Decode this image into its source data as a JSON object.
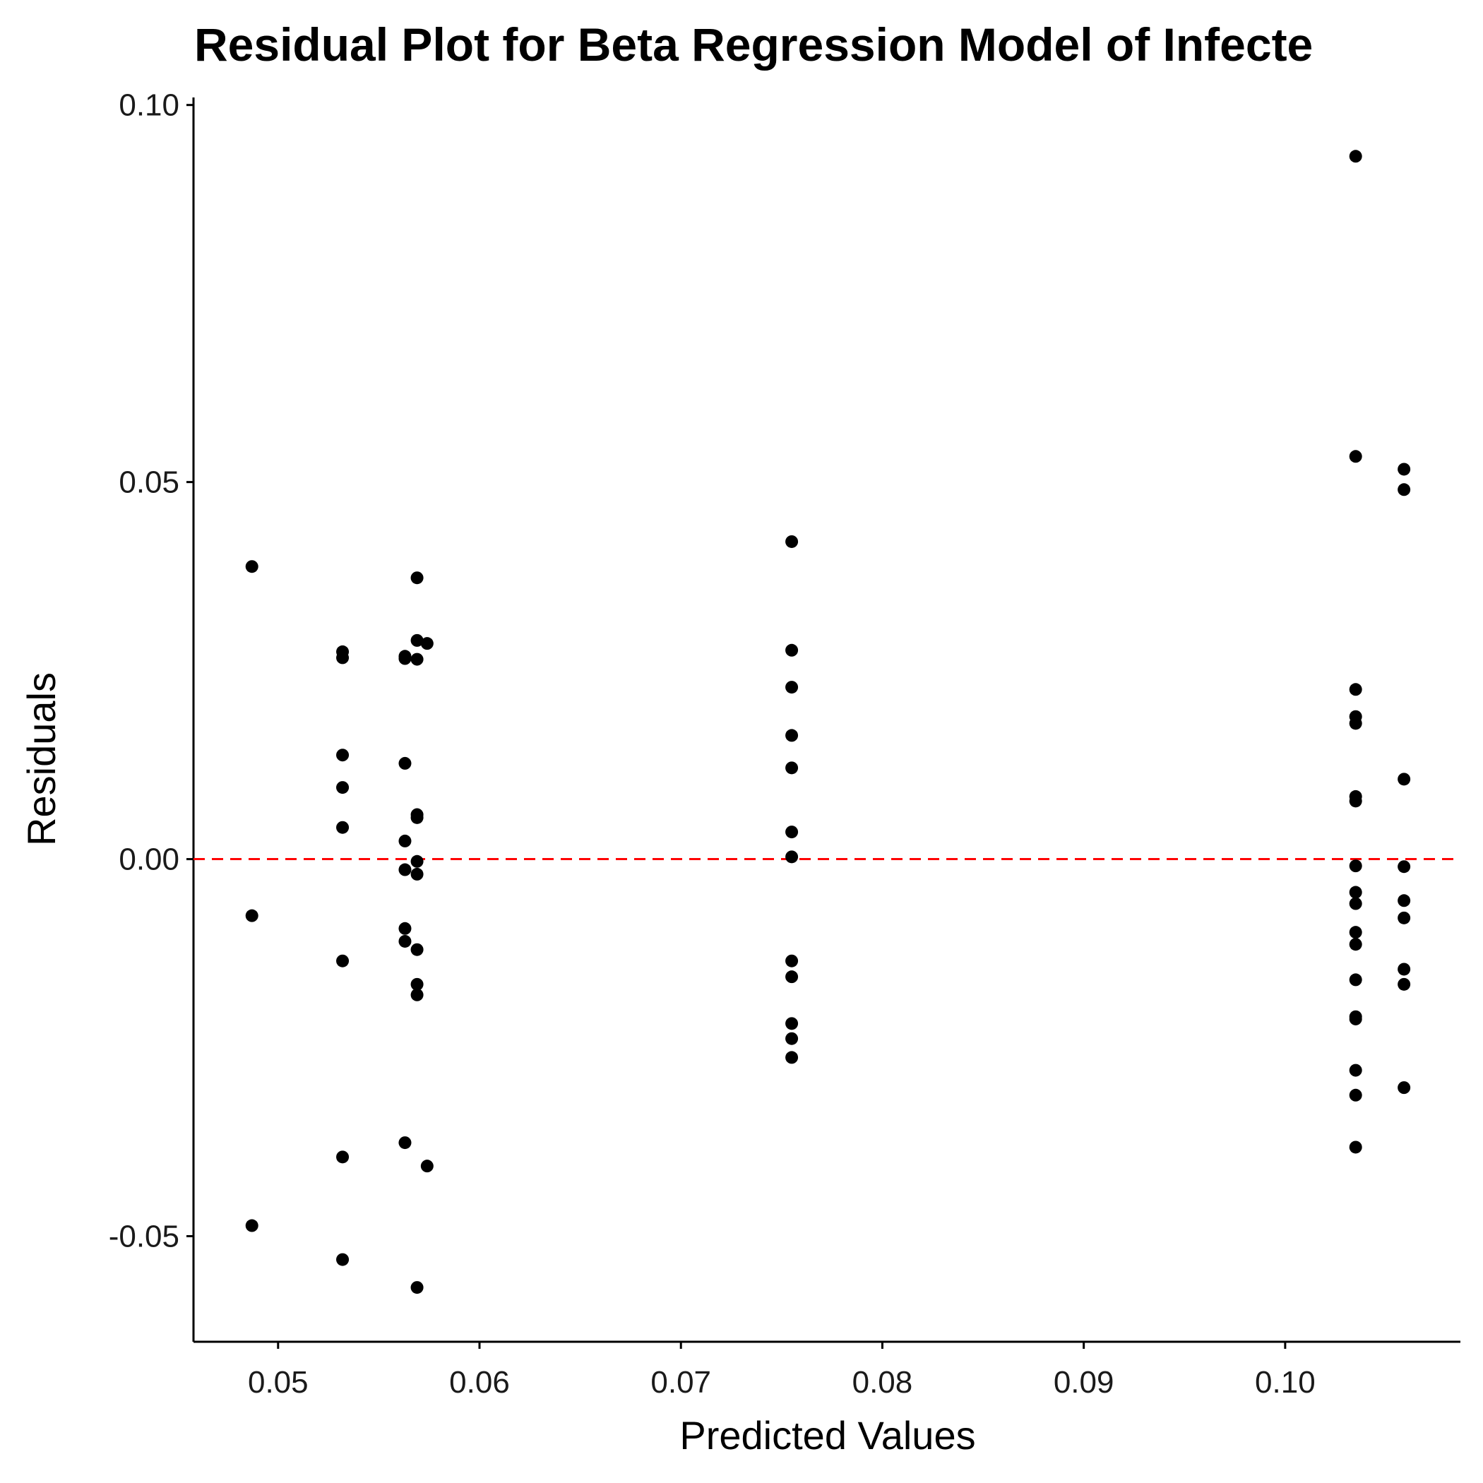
{
  "chart_data": {
    "type": "scatter",
    "title": "Residual Plot for Beta Regression Model of Infecte",
    "xlabel": "Predicted Values",
    "ylabel": "Residuals",
    "xlim": [
      0.0458,
      0.1087
    ],
    "ylim": [
      -0.064,
      0.101
    ],
    "xticks": [
      {
        "value": 0.05,
        "label": "0.05"
      },
      {
        "value": 0.06,
        "label": "0.06"
      },
      {
        "value": 0.07,
        "label": "0.07"
      },
      {
        "value": 0.08,
        "label": "0.08"
      },
      {
        "value": 0.09,
        "label": "0.09"
      },
      {
        "value": 0.1,
        "label": "0.10"
      }
    ],
    "yticks": [
      {
        "value": -0.05,
        "label": "-0.05"
      },
      {
        "value": 0.0,
        "label": "0.00"
      },
      {
        "value": 0.05,
        "label": "0.05"
      },
      {
        "value": 0.1,
        "label": "0.10"
      }
    ],
    "reference_line": {
      "y": 0,
      "color": "#ff0000",
      "style": "dashed"
    },
    "point_color": "#000000",
    "grid": false,
    "points": [
      {
        "x": 0.0487,
        "y": 0.0388
      },
      {
        "x": 0.0487,
        "y": -0.0075
      },
      {
        "x": 0.0487,
        "y": -0.0486
      },
      {
        "x": 0.0532,
        "y": 0.0275
      },
      {
        "x": 0.0532,
        "y": 0.0267
      },
      {
        "x": 0.0532,
        "y": 0.0138
      },
      {
        "x": 0.0532,
        "y": 0.0095
      },
      {
        "x": 0.0532,
        "y": 0.0042
      },
      {
        "x": 0.0532,
        "y": -0.0135
      },
      {
        "x": 0.0532,
        "y": -0.0395
      },
      {
        "x": 0.0532,
        "y": -0.0531
      },
      {
        "x": 0.0563,
        "y": 0.0269
      },
      {
        "x": 0.0563,
        "y": 0.0266
      },
      {
        "x": 0.0563,
        "y": 0.0127
      },
      {
        "x": 0.0563,
        "y": 0.0024
      },
      {
        "x": 0.0563,
        "y": -0.0014
      },
      {
        "x": 0.0563,
        "y": -0.0092
      },
      {
        "x": 0.0563,
        "y": -0.0109
      },
      {
        "x": 0.0563,
        "y": -0.0376
      },
      {
        "x": 0.0569,
        "y": 0.0373
      },
      {
        "x": 0.0569,
        "y": 0.029
      },
      {
        "x": 0.0569,
        "y": 0.0265
      },
      {
        "x": 0.0569,
        "y": 0.0059
      },
      {
        "x": 0.0569,
        "y": 0.0055
      },
      {
        "x": 0.0569,
        "y": -0.0003
      },
      {
        "x": 0.0569,
        "y": -0.002
      },
      {
        "x": 0.0569,
        "y": -0.012
      },
      {
        "x": 0.0569,
        "y": -0.0166
      },
      {
        "x": 0.0569,
        "y": -0.018
      },
      {
        "x": 0.0569,
        "y": -0.0568
      },
      {
        "x": 0.0574,
        "y": 0.0286
      },
      {
        "x": 0.0574,
        "y": -0.0407
      },
      {
        "x": 0.0755,
        "y": 0.0421
      },
      {
        "x": 0.0755,
        "y": 0.0277
      },
      {
        "x": 0.0755,
        "y": 0.0228
      },
      {
        "x": 0.0755,
        "y": 0.0164
      },
      {
        "x": 0.0755,
        "y": 0.0121
      },
      {
        "x": 0.0755,
        "y": 0.0036
      },
      {
        "x": 0.0755,
        "y": 0.0003
      },
      {
        "x": 0.0755,
        "y": -0.0135
      },
      {
        "x": 0.0755,
        "y": -0.0156
      },
      {
        "x": 0.0755,
        "y": -0.0218
      },
      {
        "x": 0.0755,
        "y": -0.0238
      },
      {
        "x": 0.0755,
        "y": -0.0263
      },
      {
        "x": 0.1035,
        "y": 0.0932
      },
      {
        "x": 0.1035,
        "y": 0.0534
      },
      {
        "x": 0.1035,
        "y": 0.0225
      },
      {
        "x": 0.1035,
        "y": 0.0189
      },
      {
        "x": 0.1035,
        "y": 0.018
      },
      {
        "x": 0.1035,
        "y": 0.0083
      },
      {
        "x": 0.1035,
        "y": 0.0077
      },
      {
        "x": 0.1035,
        "y": -0.0009
      },
      {
        "x": 0.1035,
        "y": -0.0044
      },
      {
        "x": 0.1035,
        "y": -0.0059
      },
      {
        "x": 0.1035,
        "y": -0.0097
      },
      {
        "x": 0.1035,
        "y": -0.0113
      },
      {
        "x": 0.1035,
        "y": -0.016
      },
      {
        "x": 0.1035,
        "y": -0.0209
      },
      {
        "x": 0.1035,
        "y": -0.0212
      },
      {
        "x": 0.1035,
        "y": -0.028
      },
      {
        "x": 0.1035,
        "y": -0.0313
      },
      {
        "x": 0.1035,
        "y": -0.0382
      },
      {
        "x": 0.1059,
        "y": 0.0517
      },
      {
        "x": 0.1059,
        "y": 0.049
      },
      {
        "x": 0.1059,
        "y": 0.0106
      },
      {
        "x": 0.1059,
        "y": -0.001
      },
      {
        "x": 0.1059,
        "y": -0.0055
      },
      {
        "x": 0.1059,
        "y": -0.0078
      },
      {
        "x": 0.1059,
        "y": -0.0146
      },
      {
        "x": 0.1059,
        "y": -0.0166
      },
      {
        "x": 0.1059,
        "y": -0.0303
      }
    ]
  }
}
